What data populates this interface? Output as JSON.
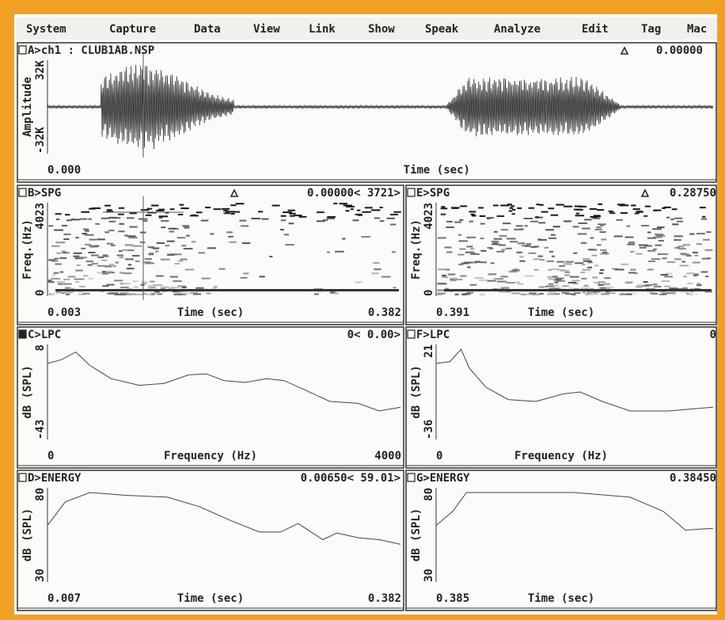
{
  "menu": [
    "System",
    "Capture",
    "Data",
    "View",
    "Link",
    "Show",
    "Speak",
    "Analyze",
    "Edit",
    "Tag",
    "Mac"
  ],
  "panels": [
    {
      "title": "A>ch1 : CLUB1AB.NSP",
      "cursor": "0.00000",
      "y_label": "Amplitude",
      "y_top": "32K",
      "y_bottom": "-32K",
      "x_start": "0.000",
      "x_label": "Time (sec)"
    },
    {
      "title": "B>SPG",
      "cursor": "0.00000< 3721>",
      "y_label": "Freq.(Hz)",
      "y_top": "4023",
      "y_bottom": "0",
      "x_start": "0.003",
      "x_label": "Time (sec)",
      "x_end": "0.382"
    },
    {
      "title": "E>SPG",
      "cursor": "0.28750",
      "y_label": "Freq.(Hz)",
      "y_top": "4023",
      "y_bottom": "0",
      "x_start": "0.391",
      "x_label": "Time (sec)"
    },
    {
      "title": "C>LPC",
      "cursor": "0< 0.00>",
      "y_label": "dB (SPL)",
      "y_top": "8",
      "y_bottom": "-43",
      "x_start": "0",
      "x_label": "Frequency (Hz)",
      "x_end": "4000"
    },
    {
      "title": "F>LPC",
      "cursor": "0",
      "y_label": "dB (SPL)",
      "y_top": "21",
      "y_bottom": "-36",
      "x_start": "0",
      "x_label": "Frequency (Hz)"
    },
    {
      "title": "D>ENERGY",
      "cursor": "0.00650< 59.01>",
      "y_label": "dB (SPL)",
      "y_top": "80",
      "y_bottom": "30",
      "x_start": "0.007",
      "x_label": "Time (sec)",
      "x_end": "0.382"
    },
    {
      "title": "G>ENERGY",
      "cursor": "0.38450",
      "y_label": "dB (SPL)",
      "y_top": "80",
      "y_bottom": "30",
      "x_start": "0.385",
      "x_label": "Time (sec)"
    }
  ]
}
